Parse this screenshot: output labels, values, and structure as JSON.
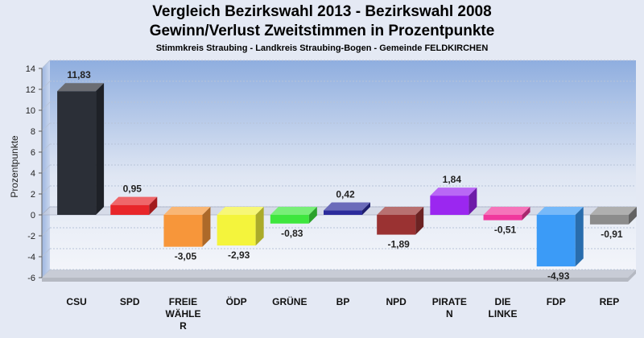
{
  "chart_data": {
    "type": "bar",
    "title": "Vergleich Bezirkswahl 2013 - Bezirkswahl 2008",
    "subtitle": "Gewinn/Verlust Zweitstimmen in Prozentpunkte",
    "caption": "Stimmkreis Straubing - Landkreis Straubing-Bogen - Gemeinde FELDKIRCHEN",
    "xlabel": "",
    "ylabel": "Prozentpunkte",
    "ylim": [
      -6,
      14
    ],
    "yticks": [
      14,
      12,
      10,
      8,
      6,
      4,
      2,
      0,
      -2,
      -4,
      -6
    ],
    "grid": true,
    "categories": [
      {
        "lines": [
          "CSU"
        ]
      },
      {
        "lines": [
          "SPD"
        ]
      },
      {
        "lines": [
          "FREIE",
          "WÄHLE",
          "R"
        ]
      },
      {
        "lines": [
          "ÖDP"
        ]
      },
      {
        "lines": [
          "GRÜNE"
        ]
      },
      {
        "lines": [
          "BP"
        ]
      },
      {
        "lines": [
          "NPD"
        ]
      },
      {
        "lines": [
          "PIRATE",
          "N"
        ]
      },
      {
        "lines": [
          "DIE",
          "LINKE"
        ]
      },
      {
        "lines": [
          "FDP"
        ]
      },
      {
        "lines": [
          "REP"
        ]
      }
    ],
    "values": [
      11.83,
      0.95,
      -3.05,
      -2.93,
      -0.83,
      0.42,
      -1.89,
      1.84,
      -0.51,
      -4.93,
      -0.91
    ],
    "value_labels": [
      "11,83",
      "0,95",
      "-3,05",
      "-2,93",
      "-0,83",
      "0,42",
      "-1,89",
      "1,84",
      "-0,51",
      "-4,93",
      "-0,91"
    ],
    "colors": [
      "#2b2f37",
      "#e8262a",
      "#f7963a",
      "#f4f43c",
      "#3ee63e",
      "#2b2b9c",
      "#9a3232",
      "#9b27f0",
      "#f0389d",
      "#3b9bf7",
      "#8c8c8c"
    ]
  }
}
